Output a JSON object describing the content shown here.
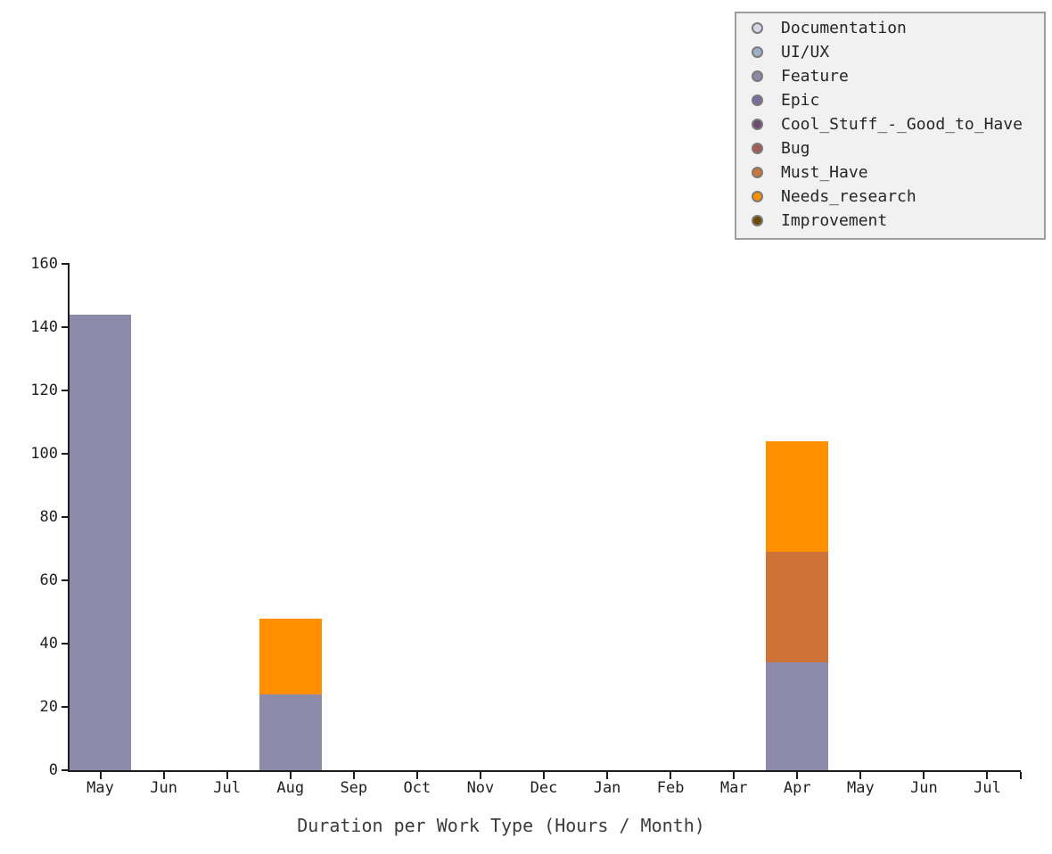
{
  "title": "Duration per Work Type (Hours / Month)",
  "colors": {
    "axis": "#1c1c1c",
    "legend_background": "#f1f1f2",
    "legend_border": "#9e9e9e",
    "legend_marker_edge": "#7a7a7a",
    "title_text": "#3c3c3c"
  },
  "chart_data": {
    "type": "bar",
    "stacked": true,
    "title": "",
    "xlabel": "Duration per Work Type (Hours / Month)",
    "ylabel": "",
    "grid": false,
    "legend_position": "upper right",
    "ylim": [
      0,
      160
    ],
    "yticks": [
      0,
      20,
      40,
      60,
      80,
      100,
      120,
      140,
      160
    ],
    "categories": [
      "May",
      "Jun",
      "Jul",
      "Aug",
      "Sep",
      "Oct",
      "Nov",
      "Dec",
      "Jan",
      "Feb",
      "Mar",
      "Apr",
      "May",
      "Jun",
      "Jul"
    ],
    "bar_width_fraction": 0.98,
    "series": [
      {
        "name": "Documentation",
        "color": "#d2d8e8",
        "values": [
          0,
          0,
          0,
          0,
          0,
          0,
          0,
          0,
          0,
          0,
          0,
          0,
          0,
          0,
          0
        ]
      },
      {
        "name": "UI/UX",
        "color": "#9fb0cb",
        "values": [
          0,
          0,
          0,
          0,
          0,
          0,
          0,
          0,
          0,
          0,
          0,
          0,
          0,
          0,
          0
        ]
      },
      {
        "name": "Feature",
        "color": "#8b8aa8",
        "values": [
          144,
          0,
          0,
          24,
          0,
          0,
          0,
          0,
          0,
          0,
          0,
          34,
          0,
          0,
          0
        ]
      },
      {
        "name": "Epic",
        "color": "#7d6b99",
        "values": [
          0,
          0,
          0,
          0,
          0,
          0,
          0,
          0,
          0,
          0,
          0,
          0,
          0,
          0,
          0
        ]
      },
      {
        "name": "Cool_Stuff_-_Good_to_Have",
        "color": "#6f4a75",
        "values": [
          0,
          0,
          0,
          0,
          0,
          0,
          0,
          0,
          0,
          0,
          0,
          0,
          0,
          0,
          0
        ]
      },
      {
        "name": "Bug",
        "color": "#a55d53",
        "values": [
          0,
          0,
          0,
          0,
          0,
          0,
          0,
          0,
          0,
          0,
          0,
          0,
          0,
          0,
          0
        ]
      },
      {
        "name": "Must_Have",
        "color": "#ce7338",
        "values": [
          0,
          0,
          0,
          0,
          0,
          0,
          0,
          0,
          0,
          0,
          0,
          35,
          0,
          0,
          0
        ]
      },
      {
        "name": "Needs_research",
        "color": "#ff8f00",
        "values": [
          0,
          0,
          0,
          24,
          0,
          0,
          0,
          0,
          0,
          0,
          0,
          35,
          0,
          0,
          0
        ]
      },
      {
        "name": "Improvement",
        "color": "#6b4a01",
        "values": [
          0,
          0,
          0,
          0,
          0,
          0,
          0,
          0,
          0,
          0,
          0,
          0,
          0,
          0,
          0
        ]
      }
    ]
  }
}
